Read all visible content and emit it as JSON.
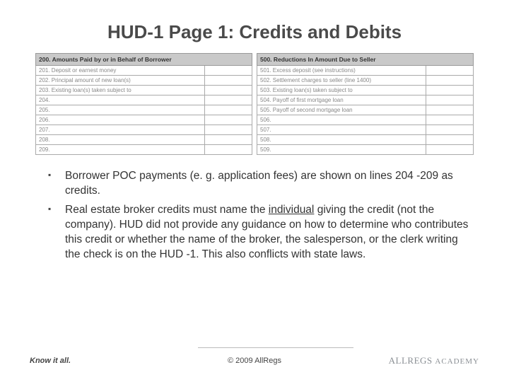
{
  "title": "HUD-1 Page 1: Credits and Debits",
  "left_table": {
    "header": "200. Amounts Paid by or in Behalf of Borrower",
    "rows": [
      "201. Deposit or earnest money",
      "202. Principal amount of new loan(s)",
      "203. Existing loan(s) taken subject to",
      "204.",
      "205.",
      "206.",
      "207.",
      "208.",
      "209."
    ]
  },
  "right_table": {
    "header": "500. Reductions In Amount Due to Seller",
    "rows": [
      "501. Excess deposit (see instructions)",
      "502. Settlement charges to seller (line 1400)",
      "503. Existing loan(s) taken subject to",
      "504. Payoff of first mortgage loan",
      "505. Payoff of second mortgage loan",
      "506.",
      "507.",
      "508.",
      "509."
    ]
  },
  "bullets": {
    "b1": "Borrower POC payments (e. g. application fees) are shown on lines 204 -209 as credits.",
    "b2a": "Real estate broker credits must name the ",
    "b2u": "individual",
    "b2b": " giving the credit (not the company). HUD did not provide any guidance on how to determine who contributes this credit or whether the name of the broker, the salesperson, or the clerk writing the check is on the HUD -1. This also conflicts with state laws."
  },
  "footer": {
    "know": "Know it all.",
    "copy": "© 2009 AllRegs",
    "logo_main": "ALLREGS",
    "logo_sub": "ACADEMY"
  },
  "colors": {
    "header_bg": "#c9c9c9",
    "border": "#aaaaaa",
    "title": "#4a4a4a",
    "text": "#333333",
    "logo": "#8a8f94"
  }
}
